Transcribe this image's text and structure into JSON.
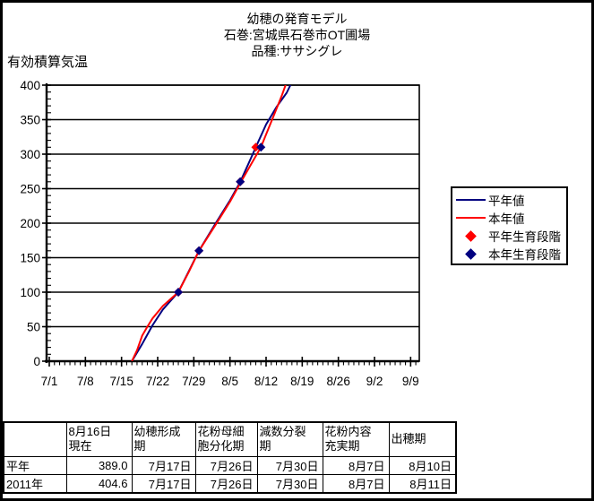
{
  "page": {
    "title": "幼穂の発育モデル",
    "subtitle_location": "石巻:宮城県石巻市OT圃場",
    "subtitle_variety": "品種:ササシグレ"
  },
  "chart_data": {
    "type": "line",
    "title": "幼穂の発育モデル",
    "subtitle": "石巻:宮城県石巻市OT圃場 品種:ササシグレ",
    "ylabel": "有効積算気温",
    "y_axis": {
      "min": 0,
      "max": 400,
      "major_step": 50,
      "minor_step": 10,
      "ticks": [
        "400",
        "350",
        "300",
        "250",
        "200",
        "150",
        "100",
        "50",
        "0"
      ]
    },
    "x_axis": {
      "minor_step_days": 1,
      "ticks": [
        "7/1",
        "7/8",
        "7/15",
        "7/22",
        "7/29",
        "8/5",
        "8/12",
        "8/19",
        "8/26",
        "9/2",
        "9/9"
      ]
    },
    "grid": "horizontal-major",
    "legend_position": "right",
    "series": [
      {
        "name": "平年値",
        "color": "#000080",
        "points": [
          [
            "7/17",
            0
          ],
          [
            "7/19",
            25
          ],
          [
            "7/21",
            52
          ],
          [
            "7/23",
            75
          ],
          [
            "7/26",
            100
          ],
          [
            "7/28",
            130
          ],
          [
            "7/30",
            160
          ],
          [
            "8/2",
            197
          ],
          [
            "8/5",
            233
          ],
          [
            "8/7",
            260
          ],
          [
            "8/9",
            293
          ],
          [
            "8/10",
            310
          ],
          [
            "8/12",
            343
          ],
          [
            "8/14",
            368
          ],
          [
            "8/16",
            389
          ],
          [
            "8/18",
            420
          ]
        ]
      },
      {
        "name": "本年値",
        "color": "#ff0000",
        "points": [
          [
            "7/17",
            0
          ],
          [
            "7/18",
            16
          ],
          [
            "7/19",
            37
          ],
          [
            "7/20",
            50
          ],
          [
            "7/21",
            62
          ],
          [
            "7/23",
            80
          ],
          [
            "7/26",
            100
          ],
          [
            "7/28",
            129
          ],
          [
            "7/30",
            160
          ],
          [
            "8/2",
            195
          ],
          [
            "8/5",
            231
          ],
          [
            "8/7",
            258
          ],
          [
            "8/9",
            284
          ],
          [
            "8/11",
            310
          ],
          [
            "8/13",
            347
          ],
          [
            "8/15",
            384
          ],
          [
            "8/16",
            404.6
          ]
        ]
      }
    ],
    "markers": [
      {
        "name": "平年生育段階",
        "color": "#ff0000",
        "points": [
          [
            "7/26",
            100
          ],
          [
            "7/30",
            160
          ],
          [
            "8/7",
            260
          ],
          [
            "8/10",
            310
          ]
        ]
      },
      {
        "name": "本年生育段階",
        "color": "#000080",
        "points": [
          [
            "7/26",
            100
          ],
          [
            "7/30",
            160
          ],
          [
            "8/7",
            260
          ],
          [
            "8/11",
            310
          ]
        ]
      }
    ]
  },
  "legend": {
    "items": [
      {
        "label": "平年値",
        "color": "#000080",
        "type": "line"
      },
      {
        "label": "本年値",
        "color": "#ff0000",
        "type": "line"
      },
      {
        "label": "平年生育段階",
        "color": "#ff0000",
        "type": "diamond"
      },
      {
        "label": "本年生育段階",
        "color": "#000080",
        "type": "diamond"
      }
    ]
  },
  "table": {
    "headers": [
      "",
      "8月16日\n現在",
      "幼穂形成\n期",
      "花粉母細\n胞分化期",
      "減数分裂\n期",
      "花粉内容\n充実期",
      "出穂期"
    ],
    "rows": [
      {
        "label": "平年",
        "values": [
          "389.0",
          "7月17日",
          "7月26日",
          "7月30日",
          "8月7日",
          "8月10日"
        ]
      },
      {
        "label": "2011年",
        "values": [
          "404.6",
          "7月17日",
          "7月26日",
          "7月30日",
          "8月7日",
          "8月11日"
        ]
      }
    ]
  },
  "colors": {
    "normal_year": "#000080",
    "this_year": "#ff0000",
    "axis": "#000000"
  }
}
